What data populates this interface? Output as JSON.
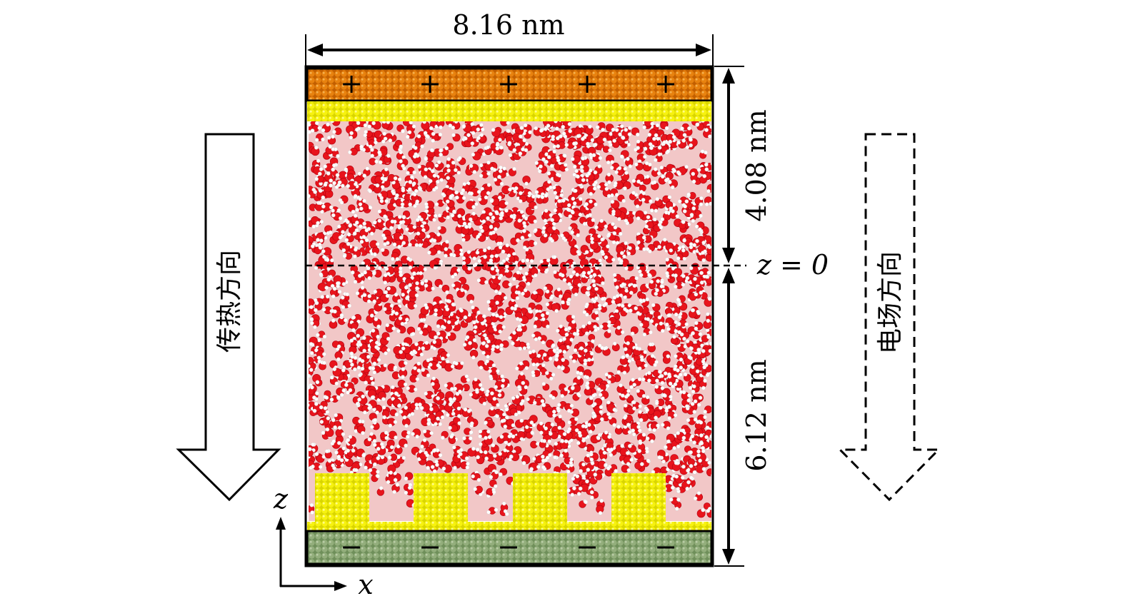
{
  "dimensions": {
    "width_label": "8.16 nm",
    "upper_height_label": "4.08 nm",
    "lower_height_label": "6.12 nm",
    "origin_label": "z = 0"
  },
  "directions": {
    "heat_transfer_label": "传热方向",
    "electric_field_label": "电场方向"
  },
  "axes": {
    "x_label": "x",
    "z_label": "z"
  },
  "electrodes": {
    "top_sign": "+",
    "bottom_sign": "−",
    "top_color": "#e07a10",
    "bottom_color": "#8fae7a"
  },
  "colors": {
    "water_oxygen": "#e8141c",
    "water_hydrogen": "#ffffff",
    "gold_layer": "#f2ee0a"
  }
}
